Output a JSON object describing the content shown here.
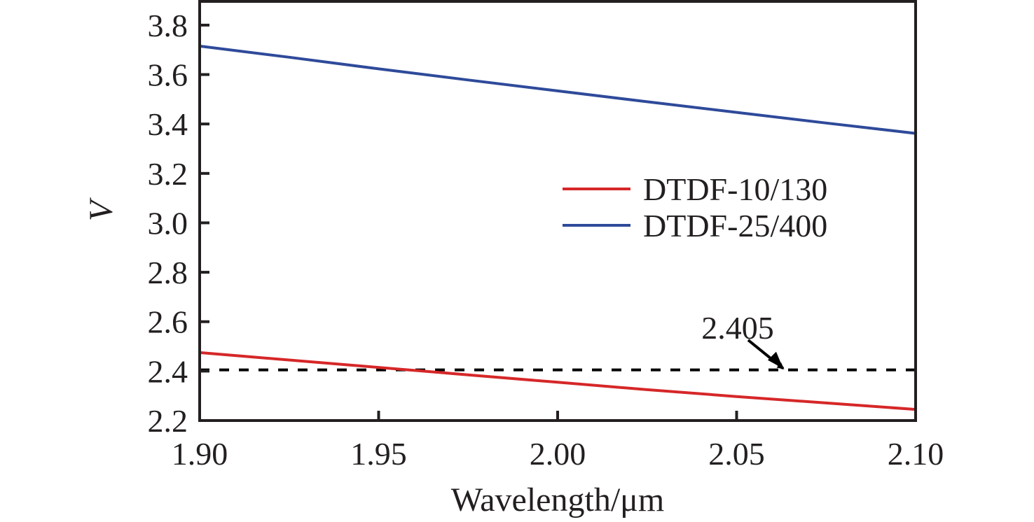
{
  "chart_data": {
    "type": "line",
    "title": "",
    "xlabel": "Wavelength/μm",
    "ylabel": "V",
    "xlim": [
      1.9,
      2.1
    ],
    "ylim": [
      2.2,
      3.896
    ],
    "xticks": [
      1.9,
      1.95,
      2.0,
      2.05,
      2.1
    ],
    "xtick_labels": [
      "1.90",
      "1.95",
      "2.00",
      "2.05",
      "2.10"
    ],
    "yticks": [
      2.2,
      2.4,
      2.6,
      2.8,
      3.0,
      3.2,
      3.4,
      3.6,
      3.8
    ],
    "ytick_labels": [
      "2.2",
      "2.4",
      "2.6",
      "2.8",
      "3.0",
      "3.2",
      "3.4",
      "3.6",
      "3.8"
    ],
    "grid": false,
    "legend_position": "center-right",
    "x": [
      1.9,
      1.925,
      1.95,
      1.975,
      2.0,
      2.025,
      2.05,
      2.075,
      2.1
    ],
    "series": [
      {
        "name": "DTDF-10/130",
        "color": "#d62728",
        "values": [
          2.475,
          2.445,
          2.415,
          2.385,
          2.355,
          2.325,
          2.297,
          2.271,
          2.245
        ]
      },
      {
        "name": "DTDF-25/400",
        "color": "#2e4a9a",
        "values": [
          3.715,
          3.67,
          3.623,
          3.578,
          3.534,
          3.49,
          3.447,
          3.404,
          3.362
        ]
      }
    ],
    "reference_line": {
      "y": 2.405,
      "style": "dashed",
      "color": "#000000",
      "label": "2.405",
      "arrow_target_x": 2.063
    }
  }
}
